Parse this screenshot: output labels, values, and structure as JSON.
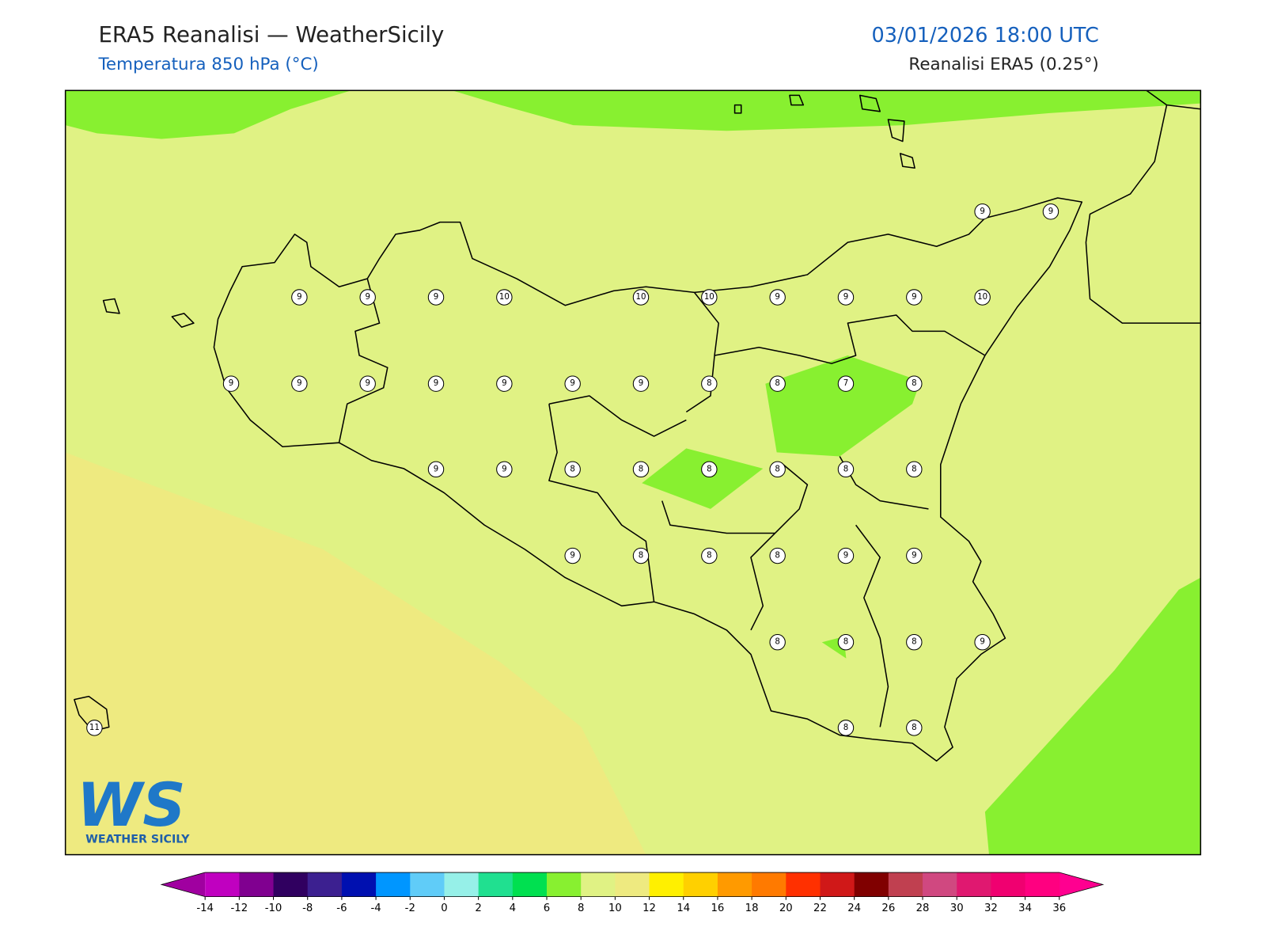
{
  "header": {
    "title": "ERA5 Reanalisi — WeatherSicily",
    "subtitle": "Temperatura 850 hPa (°C)",
    "datetime": "03/01/2026 18:00 UTC",
    "source": "Reanalisi ERA5 (0.25°)"
  },
  "map": {
    "station_rows": [
      [
        9,
        9
      ],
      [
        9,
        9,
        9,
        10,
        10,
        10,
        9,
        9,
        9,
        10
      ],
      [
        9,
        9,
        9,
        9,
        9,
        9,
        9,
        8,
        8,
        7,
        8
      ],
      [
        9,
        9,
        8,
        8,
        8,
        8,
        8,
        8
      ],
      [
        9,
        8,
        8,
        8,
        9,
        9
      ],
      [
        8,
        8,
        8,
        9
      ],
      [
        11,
        8,
        8
      ]
    ]
  },
  "colorbar": {
    "ticks": [
      -14,
      -12,
      -10,
      -8,
      -6,
      -4,
      -2,
      0,
      2,
      4,
      6,
      8,
      10,
      12,
      14,
      16,
      18,
      20,
      22,
      24,
      26,
      28,
      30,
      32,
      34,
      36
    ],
    "colors": [
      "#c000c0",
      "#800090",
      "#300060",
      "#3c2090",
      "#0010b0",
      "#0096ff",
      "#60ccf8",
      "#96f0e8",
      "#20e090",
      "#00e050",
      "#88f030",
      "#e0f284",
      "#eeea80",
      "#fff000",
      "#ffd000",
      "#ff9a00",
      "#ff7a00",
      "#ff3000",
      "#d01818",
      "#800000",
      "#c04050",
      "#d04880",
      "#e01870",
      "#f00070",
      "#ff0080"
    ],
    "extend_colors": [
      "#a000a0",
      "#ff0090"
    ]
  },
  "logo": {
    "mark": "WS",
    "text": "WEATHER SICILY"
  }
}
